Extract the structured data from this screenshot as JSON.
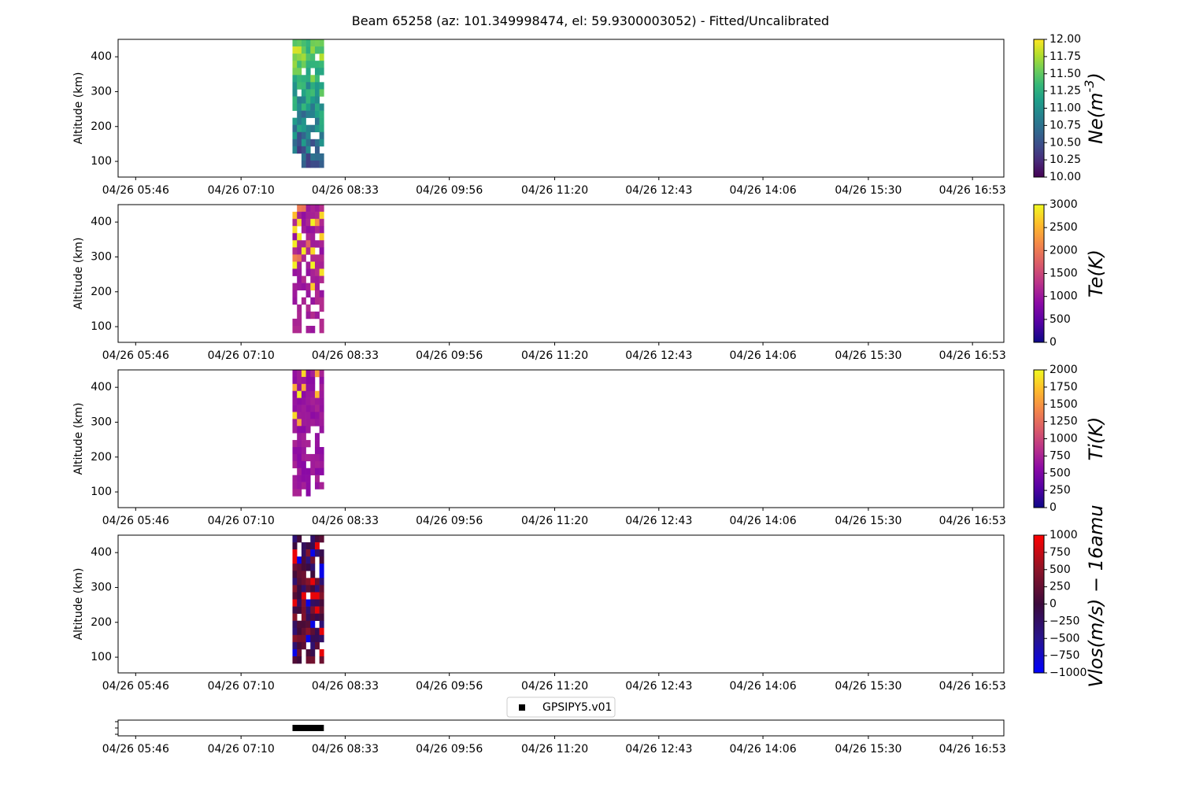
{
  "figure": {
    "title": "Beam 65258 (az: 101.349998474, el: 59.9300003052) - Fitted/Uncalibrated"
  },
  "colors": {
    "background": "#ffffff",
    "axes": "#000000",
    "legend_border": "#cccccc"
  },
  "chart_data": [
    {
      "type": "heatmap",
      "name": "ne",
      "ylabel": "Altitude (km)",
      "xticks": [
        "04/26 05:46",
        "04/26 07:10",
        "04/26 08:33",
        "04/26 09:56",
        "04/26 11:20",
        "04/26 12:43",
        "04/26 14:06",
        "04/26 15:30",
        "04/26 16:53"
      ],
      "yticks": [
        100,
        200,
        300,
        400
      ],
      "x_range": [
        "04/26 05:32",
        "04/26 17:18"
      ],
      "ylim": [
        55,
        450
      ],
      "data_time_span": [
        "04/26 07:51",
        "04/26 08:16"
      ],
      "data_alt_span": [
        82,
        450
      ],
      "colorbar": {
        "label": "Ne(m^{-3})",
        "colormap": "viridis",
        "range": [
          10.0,
          12.0
        ],
        "ticks": [
          "10.00",
          "10.25",
          "10.50",
          "10.75",
          "11.00",
          "11.25",
          "11.50",
          "11.75",
          "12.00"
        ]
      }
    },
    {
      "type": "heatmap",
      "name": "te",
      "ylabel": "Altitude (km)",
      "xticks": [
        "04/26 05:46",
        "04/26 07:10",
        "04/26 08:33",
        "04/26 09:56",
        "04/26 11:20",
        "04/26 12:43",
        "04/26 14:06",
        "04/26 15:30",
        "04/26 16:53"
      ],
      "yticks": [
        100,
        200,
        300,
        400
      ],
      "x_range": [
        "04/26 05:32",
        "04/26 17:18"
      ],
      "ylim": [
        55,
        450
      ],
      "data_time_span": [
        "04/26 07:51",
        "04/26 08:16"
      ],
      "data_alt_span": [
        82,
        450
      ],
      "colorbar": {
        "label": "Te(K)",
        "colormap": "plasma",
        "range": [
          0,
          3000
        ],
        "ticks": [
          "0",
          "500",
          "1000",
          "1500",
          "2000",
          "2500",
          "3000"
        ]
      }
    },
    {
      "type": "heatmap",
      "name": "ti",
      "ylabel": "Altitude (km)",
      "xticks": [
        "04/26 05:46",
        "04/26 07:10",
        "04/26 08:33",
        "04/26 09:56",
        "04/26 11:20",
        "04/26 12:43",
        "04/26 14:06",
        "04/26 15:30",
        "04/26 16:53"
      ],
      "yticks": [
        100,
        200,
        300,
        400
      ],
      "x_range": [
        "04/26 05:32",
        "04/26 17:18"
      ],
      "ylim": [
        55,
        450
      ],
      "data_time_span": [
        "04/26 07:51",
        "04/26 08:16"
      ],
      "data_alt_span": [
        88,
        450
      ],
      "colorbar": {
        "label": "Ti(K)",
        "colormap": "plasma",
        "range": [
          0,
          2000
        ],
        "ticks": [
          "0",
          "250",
          "500",
          "750",
          "1000",
          "1250",
          "1500",
          "1750",
          "2000"
        ]
      }
    },
    {
      "type": "heatmap",
      "name": "vlos",
      "ylabel": "Altitude (km)",
      "xticks": [
        "04/26 05:46",
        "04/26 07:10",
        "04/26 08:33",
        "04/26 09:56",
        "04/26 11:20",
        "04/26 12:43",
        "04/26 14:06",
        "04/26 15:30",
        "04/26 16:53"
      ],
      "yticks": [
        100,
        200,
        300,
        400
      ],
      "x_range": [
        "04/26 05:32",
        "04/26 17:18"
      ],
      "ylim": [
        55,
        450
      ],
      "data_time_span": [
        "04/26 07:51",
        "04/26 08:16"
      ],
      "data_alt_span": [
        82,
        450
      ],
      "colorbar": {
        "label": "Vlos(m/s) - 16amu",
        "colormap": "bwr-dark",
        "range": [
          -1000,
          1000
        ],
        "ticks": [
          "−1000",
          "−750",
          "−500",
          "−250",
          "0",
          "250",
          "500",
          "750",
          "1000"
        ]
      }
    },
    {
      "type": "bar",
      "name": "timeline",
      "xticks": [
        "04/26 05:46",
        "04/26 07:10",
        "04/26 08:33",
        "04/26 09:56",
        "04/26 11:20",
        "04/26 12:43",
        "04/26 14:06",
        "04/26 15:30",
        "04/26 16:53"
      ],
      "x_range": [
        "04/26 05:32",
        "04/26 17:18"
      ],
      "series": [
        {
          "name": "GPSIPY5.v01",
          "span": [
            "04/26 07:51",
            "04/26 08:16"
          ]
        }
      ],
      "legend": "top-center"
    }
  ]
}
